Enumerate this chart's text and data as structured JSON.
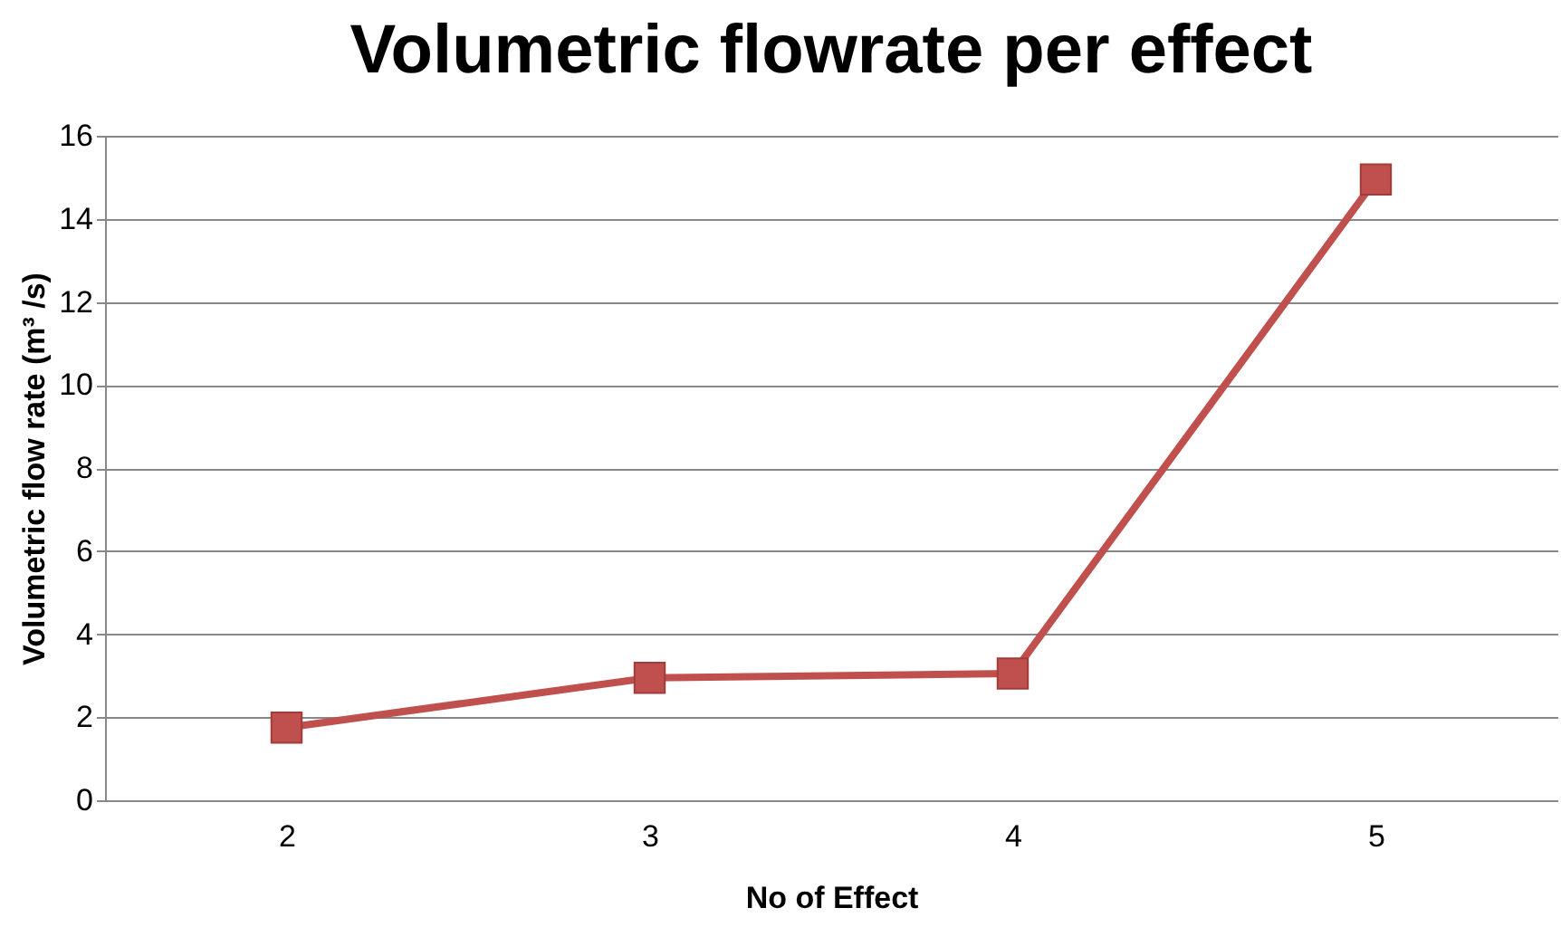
{
  "chart_data": {
    "type": "line",
    "title": "Volumetric flowrate per effect",
    "xlabel": "No of Effect",
    "ylabel": "Volumetric flow rate (m³ /s)",
    "categories": [
      "2",
      "3",
      "4",
      "5"
    ],
    "series": [
      {
        "color": "#c0504d",
        "values": [
          1.75,
          2.95,
          3.05,
          14.95
        ]
      }
    ],
    "ylim": [
      0,
      16
    ],
    "yticks": [
      0,
      2,
      4,
      6,
      8,
      10,
      12,
      14,
      16
    ],
    "grid": "y",
    "marker": "square",
    "line_style": "solid"
  }
}
